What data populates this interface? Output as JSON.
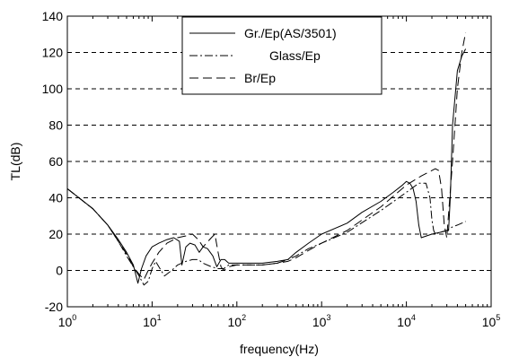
{
  "chart_data": {
    "type": "line",
    "xlabel": "frequency(Hz)",
    "ylabel": "TL(dB)",
    "x_scale": "log",
    "xlim": [
      1,
      100000
    ],
    "ylim": [
      -20,
      140
    ],
    "x_ticks": [
      {
        "base": "10",
        "exp": "0"
      },
      {
        "base": "10",
        "exp": "1"
      },
      {
        "base": "10",
        "exp": "2"
      },
      {
        "base": "10",
        "exp": "3"
      },
      {
        "base": "10",
        "exp": "4"
      },
      {
        "base": "10",
        "exp": "5"
      }
    ],
    "y_ticks": [
      "-20",
      "0",
      "20",
      "40",
      "60",
      "80",
      "100",
      "120",
      "140"
    ],
    "grid": "horizontal dashed",
    "legend_position": "top-center",
    "series": [
      {
        "name": "Gr./Ep(AS/3501)",
        "line_style": "solid",
        "x": [
          1,
          2,
          3,
          4,
          5,
          6,
          6.8,
          7.5,
          8.5,
          10,
          12,
          15,
          18,
          21,
          22.5,
          25,
          28,
          32,
          36,
          40,
          45,
          52,
          58,
          65,
          72,
          80,
          100,
          150,
          200,
          300,
          400,
          500,
          700,
          1000,
          2000,
          3000,
          5000,
          7000,
          9000,
          10000,
          11000,
          12000,
          13000,
          14000,
          15000,
          20000,
          25000,
          30000,
          31500,
          33000,
          35000,
          40000,
          45000,
          50000
        ],
        "y": [
          45,
          34,
          25,
          17,
          10,
          3,
          -7,
          1,
          8,
          13,
          15,
          17,
          18,
          16,
          3,
          13,
          15,
          14,
          10,
          13,
          12,
          8,
          2,
          6,
          6,
          4,
          4,
          4,
          4,
          5,
          6,
          10,
          15,
          20,
          26,
          32,
          38,
          43,
          47,
          49,
          48,
          45,
          38,
          25,
          18,
          20,
          21,
          22,
          22,
          40,
          80,
          110,
          118,
          122
        ]
      },
      {
        "name": "Glass/Ep",
        "line_style": "dash-dot",
        "x": [
          1,
          2,
          3,
          4,
          5,
          6,
          7,
          8,
          9,
          10,
          11,
          12,
          14,
          17,
          20,
          25,
          30,
          35,
          40,
          50,
          60,
          70,
          80,
          100,
          150,
          200,
          300,
          400,
          500,
          700,
          1000,
          2000,
          5000,
          10000,
          14000,
          17000,
          19000,
          20000,
          21000,
          22000,
          25000,
          30000,
          35000,
          40000,
          45000,
          50000
        ],
        "y": [
          45,
          34,
          25,
          16,
          8,
          2,
          -3,
          -8,
          -6,
          1,
          5,
          2,
          -3,
          0,
          3,
          5,
          6,
          6,
          4,
          2,
          1,
          1,
          3,
          3,
          3,
          3,
          4,
          6,
          8,
          12,
          15,
          21,
          33,
          43,
          48,
          48,
          40,
          28,
          22,
          20,
          21,
          22,
          24,
          25,
          26,
          27
        ]
      },
      {
        "name": "Br/Ep",
        "line_style": "dashed",
        "x": [
          1,
          2,
          3,
          4,
          5,
          6,
          7,
          8,
          9,
          10,
          12,
          15,
          20,
          25,
          30,
          35,
          40,
          50,
          55,
          60,
          65,
          70,
          80,
          100,
          150,
          200,
          300,
          400,
          500,
          700,
          1000,
          2000,
          5000,
          10000,
          15000,
          20000,
          22000,
          24000,
          26000,
          28000,
          30000,
          35000,
          40000,
          45000,
          50000
        ],
        "y": [
          45,
          34,
          25,
          16,
          9,
          2,
          -2,
          -5,
          0,
          4,
          10,
          15,
          18,
          19,
          20,
          17,
          13,
          18,
          20,
          10,
          2,
          0,
          2,
          3,
          3,
          3,
          4,
          5,
          7,
          11,
          15,
          22,
          35,
          47,
          52,
          55,
          56,
          55,
          45,
          25,
          18,
          60,
          100,
          120,
          131
        ]
      }
    ]
  }
}
